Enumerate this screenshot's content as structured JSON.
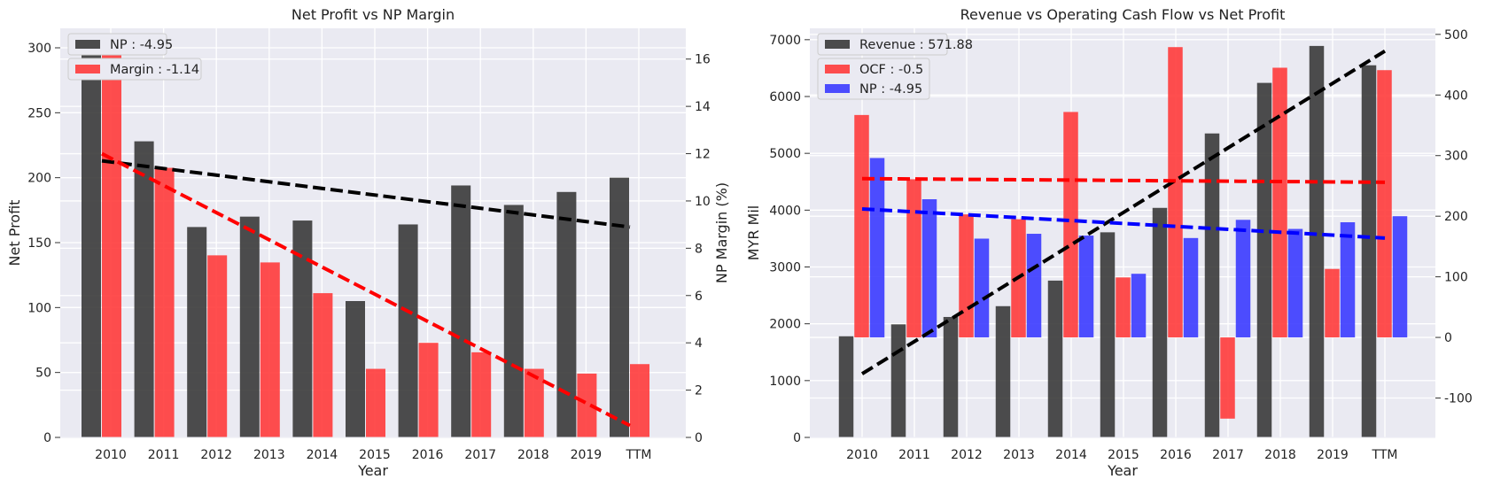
{
  "chart_data": [
    {
      "type": "bar",
      "title": "Net Profit vs NP Margin",
      "xlabel": "Year",
      "ylabel": "Net Profit",
      "ylabel_right": "NP Margin (%)",
      "categories": [
        "2010",
        "2011",
        "2012",
        "2013",
        "2014",
        "2015",
        "2016",
        "2017",
        "2018",
        "2019",
        "TTM"
      ],
      "ylim": [
        0,
        315
      ],
      "ylim_right": [
        0,
        17.3
      ],
      "yticks": [
        0,
        50,
        100,
        150,
        200,
        250,
        300
      ],
      "yticks_right": [
        0,
        2,
        4,
        6,
        8,
        10,
        12,
        14,
        16
      ],
      "series": [
        {
          "name": "NP : -4.95",
          "axis": "left",
          "color": "#3a3a3a",
          "values": [
            300,
            228,
            162,
            170,
            167,
            105,
            164,
            194,
            179,
            189,
            200
          ]
        },
        {
          "name": "Margin : -1.14",
          "axis": "right",
          "color": "#ff3b3b",
          "values": [
            16.4,
            11.4,
            7.7,
            7.4,
            6.1,
            2.9,
            4.0,
            3.6,
            2.9,
            2.7,
            3.1
          ]
        }
      ],
      "trendlines": [
        {
          "axis": "left",
          "color": "#000000",
          "from": 213,
          "to": 162
        },
        {
          "axis": "right",
          "color": "#ff0000",
          "from": 12.0,
          "to": 0.5
        }
      ],
      "grid": true,
      "legend": "top-left"
    },
    {
      "type": "bar",
      "title": "Revenue vs Operating Cash Flow vs Net Profit",
      "xlabel": "Year",
      "ylabel": "MYR Mil",
      "categories": [
        "2010",
        "2011",
        "2012",
        "2013",
        "2014",
        "2015",
        "2016",
        "2017",
        "2018",
        "2019",
        "TTM"
      ],
      "ylim": [
        0,
        7200
      ],
      "ylim_right": [
        -165,
        510
      ],
      "yticks": [
        0,
        1000,
        2000,
        3000,
        4000,
        5000,
        6000,
        7000
      ],
      "yticks_right": [
        -100,
        0,
        100,
        200,
        300,
        400,
        500
      ],
      "series": [
        {
          "name": "Revenue : 571.88",
          "axis": "left",
          "color": "#3a3a3a",
          "values": [
            1780,
            1990,
            2120,
            2310,
            2760,
            3610,
            4040,
            5350,
            6240,
            6890,
            6550
          ]
        },
        {
          "name": "OCF : -0.5",
          "axis": "right",
          "color": "#ff3b3b",
          "values": [
            367,
            261,
            203,
            195,
            372,
            99,
            479,
            -134,
            445,
            113,
            441
          ]
        },
        {
          "name": "NP : -4.95",
          "axis": "right",
          "color": "#3b3bff",
          "values": [
            296,
            228,
            163,
            171,
            168,
            105,
            164,
            194,
            179,
            190,
            200
          ]
        }
      ],
      "trendlines": [
        {
          "axis": "left",
          "color": "#000000",
          "from": 1120,
          "to": 6800
        },
        {
          "axis": "right",
          "color": "#ff0000",
          "from": 262,
          "to": 256
        },
        {
          "axis": "right",
          "color": "#0000ff",
          "from": 212,
          "to": 164
        }
      ],
      "grid": true,
      "legend": "top-left"
    }
  ]
}
